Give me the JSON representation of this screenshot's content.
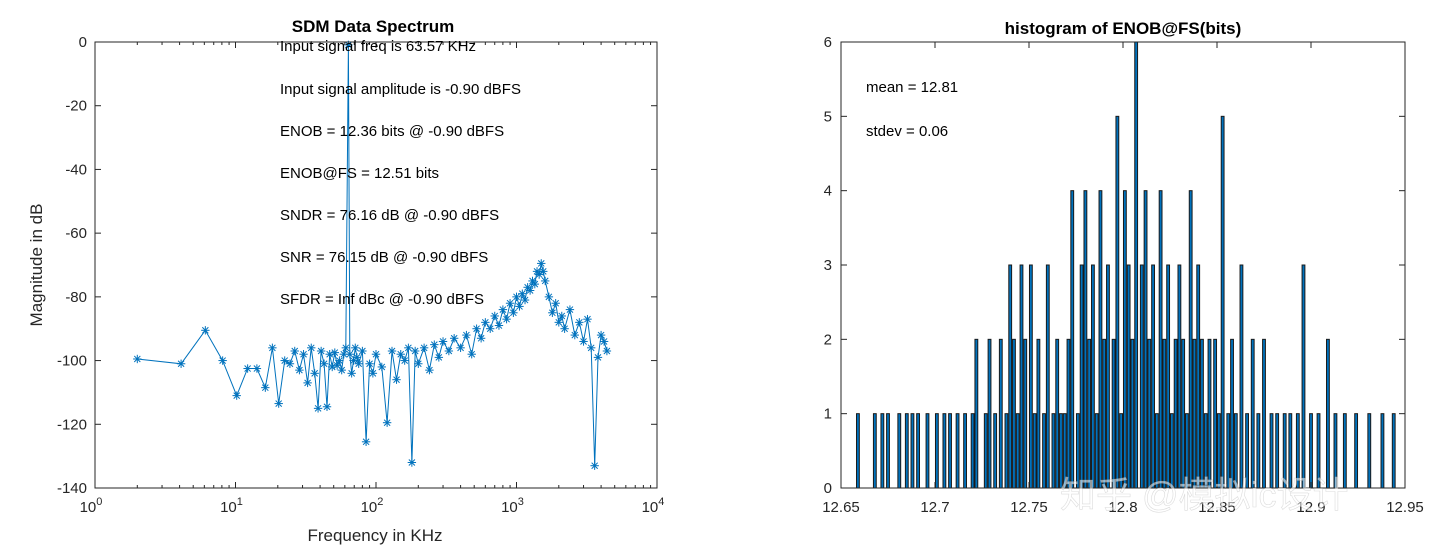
{
  "chart_data": [
    {
      "type": "line",
      "title": "SDM Data Spectrum",
      "xlabel": "Frequency in KHz",
      "ylabel": "Magnitude in dB",
      "xscale": "log",
      "xlim": [
        1,
        10000
      ],
      "ylim": [
        -140,
        0
      ],
      "xticks": [
        {
          "value": 1,
          "base": "10",
          "exp": "0"
        },
        {
          "value": 10,
          "base": "10",
          "exp": "1"
        },
        {
          "value": 100,
          "base": "10",
          "exp": "2"
        },
        {
          "value": 1000,
          "base": "10",
          "exp": "3"
        },
        {
          "value": 10000,
          "base": "10",
          "exp": "4"
        }
      ],
      "yticks": [
        0,
        -20,
        -40,
        -60,
        -80,
        -100,
        -120,
        -140
      ],
      "ytick_labels": [
        "0",
        "-20",
        "-40",
        "-60",
        "-80",
        "-100",
        "-120",
        "-140"
      ],
      "marker": "asterisk",
      "series_color": "#0072bd",
      "series": [
        {
          "name": "spectrum",
          "x": [
            2.0,
            4.1,
            6.1,
            8.1,
            10.2,
            12.2,
            14.2,
            16.3,
            18.3,
            20.3,
            22.4,
            24.4,
            26.4,
            28.5,
            30.5,
            32.6,
            34.6,
            36.6,
            38.7,
            40.7,
            42.7,
            44.8,
            46.8,
            48.8,
            50.9,
            52.9,
            54.9,
            57.0,
            59.0,
            61.0,
            63.6,
            65.1,
            67.1,
            69.2,
            71.2,
            73.2,
            75.3,
            80.0,
            85.0,
            90.0,
            95.0,
            100.0,
            110.0,
            120.0,
            130.0,
            140.0,
            150.0,
            160.0,
            170.0,
            180.0,
            190.0,
            200.0,
            220.0,
            240.0,
            260.0,
            280.0,
            300.0,
            330.0,
            360.0,
            400.0,
            440.0,
            480.0,
            520.0,
            560.0,
            600.0,
            650.0,
            700.0,
            750.0,
            800.0,
            850.0,
            900.0,
            950.0,
            1000.0,
            1050.0,
            1100.0,
            1150.0,
            1200.0,
            1250.0,
            1300.0,
            1350.0,
            1400.0,
            1450.0,
            1500.0,
            1550.0,
            1600.0,
            1700.0,
            1800.0,
            1900.0,
            2000.0,
            2100.0,
            2200.0,
            2400.0,
            2600.0,
            2800.0,
            3000.0,
            3200.0,
            3400.0,
            3600.0,
            3800.0,
            4000.0,
            4200.0,
            4400.0
          ],
          "y": [
            -99.5,
            -101.0,
            -90.5,
            -100.0,
            -111.0,
            -102.5,
            -102.5,
            -108.5,
            -96.0,
            -113.5,
            -100.0,
            -101.0,
            -97.0,
            -103.0,
            -98.0,
            -107.0,
            -96.0,
            -104.0,
            -115.0,
            -97.0,
            -101.0,
            -114.5,
            -98.0,
            -102.0,
            -97.5,
            -101.5,
            -100.0,
            -103.0,
            -98.0,
            -96.0,
            -0.9,
            -98.0,
            -104.0,
            -100.0,
            -96.0,
            -99.0,
            -101.0,
            -97.0,
            -125.5,
            -101.0,
            -104.0,
            -98.0,
            -102.0,
            -119.5,
            -97.0,
            -106.0,
            -98.0,
            -100.0,
            -96.0,
            -132.0,
            -97.0,
            -101.0,
            -96.0,
            -103.0,
            -95.0,
            -99.0,
            -94.0,
            -97.0,
            -93.0,
            -96.0,
            -92.0,
            -98.0,
            -90.0,
            -93.0,
            -88.0,
            -90.0,
            -86.0,
            -89.0,
            -84.0,
            -87.0,
            -82.0,
            -85.0,
            -80.0,
            -83.0,
            -79.0,
            -81.0,
            -77.0,
            -78.0,
            -75.0,
            -76.0,
            -72.0,
            -73.0,
            -69.5,
            -72.0,
            -75.0,
            -80.0,
            -85.0,
            -82.0,
            -88.0,
            -86.0,
            -90.0,
            -84.0,
            -92.0,
            -88.0,
            -94.0,
            -87.0,
            -96.0,
            -133.0,
            -99.0,
            -92.0,
            -94.0,
            -97.0
          ]
        }
      ],
      "annotations": [
        "Input signal freq is 63.57 KHz",
        "Input signal amplitude is -0.90 dBFS",
        "ENOB = 12.36 bits @ -0.90 dBFS",
        "ENOB@FS = 12.51 bits",
        "SNDR = 76.16 dB @ -0.90 dBFS",
        "SNR = 76.15 dB @ -0.90 dBFS",
        "SFDR = Inf dBc @ -0.90 dBFS"
      ]
    },
    {
      "type": "bar",
      "title": "histogram of ENOB@FS(bits)",
      "xlabel": "",
      "ylabel": "",
      "xlim": [
        12.65,
        12.95
      ],
      "ylim": [
        0,
        6
      ],
      "xticks": [
        12.65,
        12.7,
        12.75,
        12.8,
        12.85,
        12.9,
        12.95
      ],
      "xtick_labels": [
        "12.65",
        "12.7",
        "12.75",
        "12.8",
        "12.85",
        "12.9",
        "12.95"
      ],
      "yticks": [
        0,
        1,
        2,
        3,
        4,
        5,
        6
      ],
      "ytick_labels": [
        "0",
        "1",
        "2",
        "3",
        "4",
        "5",
        "6"
      ],
      "bar_color": "#0072bd",
      "bin_width": 0.0015,
      "bins": [
        12.659,
        12.668,
        12.672,
        12.675,
        12.681,
        12.685,
        12.688,
        12.691,
        12.696,
        12.701,
        12.705,
        12.708,
        12.712,
        12.716,
        12.72,
        12.722,
        12.727,
        12.729,
        12.732,
        12.735,
        12.738,
        12.74,
        12.742,
        12.744,
        12.746,
        12.748,
        12.751,
        12.753,
        12.755,
        12.758,
        12.76,
        12.763,
        12.765,
        12.767,
        12.769,
        12.771,
        12.773,
        12.776,
        12.778,
        12.78,
        12.782,
        12.784,
        12.786,
        12.788,
        12.79,
        12.792,
        12.795,
        12.797,
        12.799,
        12.801,
        12.803,
        12.805,
        12.807,
        12.81,
        12.812,
        12.814,
        12.816,
        12.818,
        12.82,
        12.822,
        12.824,
        12.826,
        12.828,
        12.83,
        12.832,
        12.834,
        12.836,
        12.838,
        12.84,
        12.842,
        12.844,
        12.846,
        12.849,
        12.851,
        12.853,
        12.856,
        12.858,
        12.86,
        12.863,
        12.866,
        12.869,
        12.872,
        12.875,
        12.879,
        12.882,
        12.886,
        12.889,
        12.893,
        12.896,
        12.9,
        12.904,
        12.909,
        12.913,
        12.918,
        12.924,
        12.931,
        12.938,
        12.944
      ],
      "values": [
        1,
        1,
        1,
        1,
        1,
        1,
        1,
        1,
        1,
        1,
        1,
        1,
        1,
        1,
        1,
        2,
        1,
        2,
        1,
        2,
        1,
        3,
        2,
        1,
        3,
        2,
        3,
        1,
        2,
        1,
        3,
        1,
        2,
        1,
        1,
        2,
        4,
        1,
        3,
        4,
        2,
        3,
        1,
        4,
        2,
        3,
        2,
        5,
        1,
        4,
        3,
        2,
        6,
        3,
        4,
        2,
        3,
        1,
        4,
        2,
        3,
        1,
        2,
        3,
        2,
        1,
        4,
        2,
        3,
        2,
        1,
        2,
        2,
        1,
        5,
        1,
        2,
        1,
        3,
        1,
        2,
        1,
        2,
        1,
        1,
        1,
        1,
        1,
        3,
        1,
        1,
        2,
        1,
        1,
        1,
        1,
        1,
        1
      ],
      "annotations": [
        "mean = 12.81",
        "stdev = 0.06"
      ]
    }
  ],
  "watermark": "知乎 @模拟ic设计"
}
